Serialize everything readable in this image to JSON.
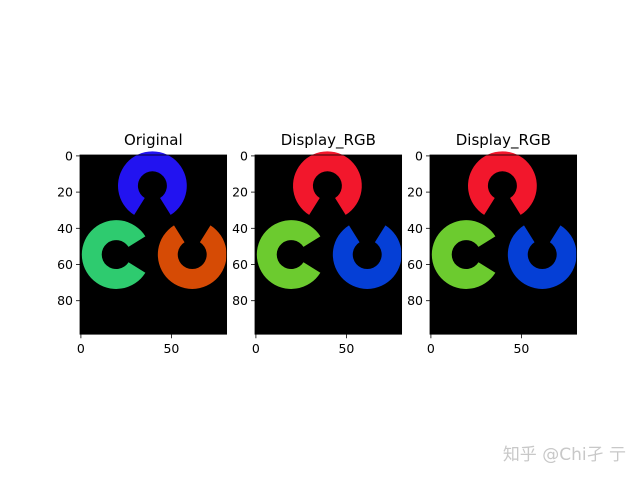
{
  "chart_data": [
    {
      "type": "image",
      "title": "Original",
      "xticks": [
        "0",
        "50"
      ],
      "yticks": [
        "0",
        "20",
        "40",
        "60",
        "80"
      ],
      "xlim": [
        0,
        81
      ],
      "ylim": [
        99,
        0
      ],
      "background": "#000000",
      "rings": [
        {
          "name": "top",
          "color": "#2213f0",
          "center": [
            40,
            17
          ],
          "gap": "bottom"
        },
        {
          "name": "left",
          "color": "#2ecb6f",
          "center": [
            20,
            55
          ],
          "gap": "right"
        },
        {
          "name": "right",
          "color": "#d64b05",
          "center": [
            62,
            55
          ],
          "gap": "top"
        }
      ]
    },
    {
      "type": "image",
      "title": "Display_RGB",
      "xticks": [
        "0",
        "50"
      ],
      "yticks": [
        "0",
        "20",
        "40",
        "60",
        "80"
      ],
      "xlim": [
        0,
        81
      ],
      "ylim": [
        99,
        0
      ],
      "background": "#000000",
      "rings": [
        {
          "name": "top",
          "color": "#f2172c",
          "center": [
            40,
            17
          ],
          "gap": "bottom"
        },
        {
          "name": "left",
          "color": "#6ccb2f",
          "center": [
            20,
            55
          ],
          "gap": "right"
        },
        {
          "name": "right",
          "color": "#053fd6",
          "center": [
            62,
            55
          ],
          "gap": "top"
        }
      ]
    },
    {
      "type": "image",
      "title": "Display_RGB",
      "xticks": [
        "0",
        "50"
      ],
      "yticks": [
        "0",
        "20",
        "40",
        "60",
        "80"
      ],
      "xlim": [
        0,
        81
      ],
      "ylim": [
        99,
        0
      ],
      "background": "#000000",
      "rings": [
        {
          "name": "top",
          "color": "#f2172c",
          "center": [
            40,
            17
          ],
          "gap": "bottom"
        },
        {
          "name": "left",
          "color": "#6ccb2f",
          "center": [
            20,
            55
          ],
          "gap": "right"
        },
        {
          "name": "right",
          "color": "#053fd6",
          "center": [
            62,
            55
          ],
          "gap": "top"
        }
      ]
    }
  ],
  "watermark": "知乎 @Chi孑 亍"
}
